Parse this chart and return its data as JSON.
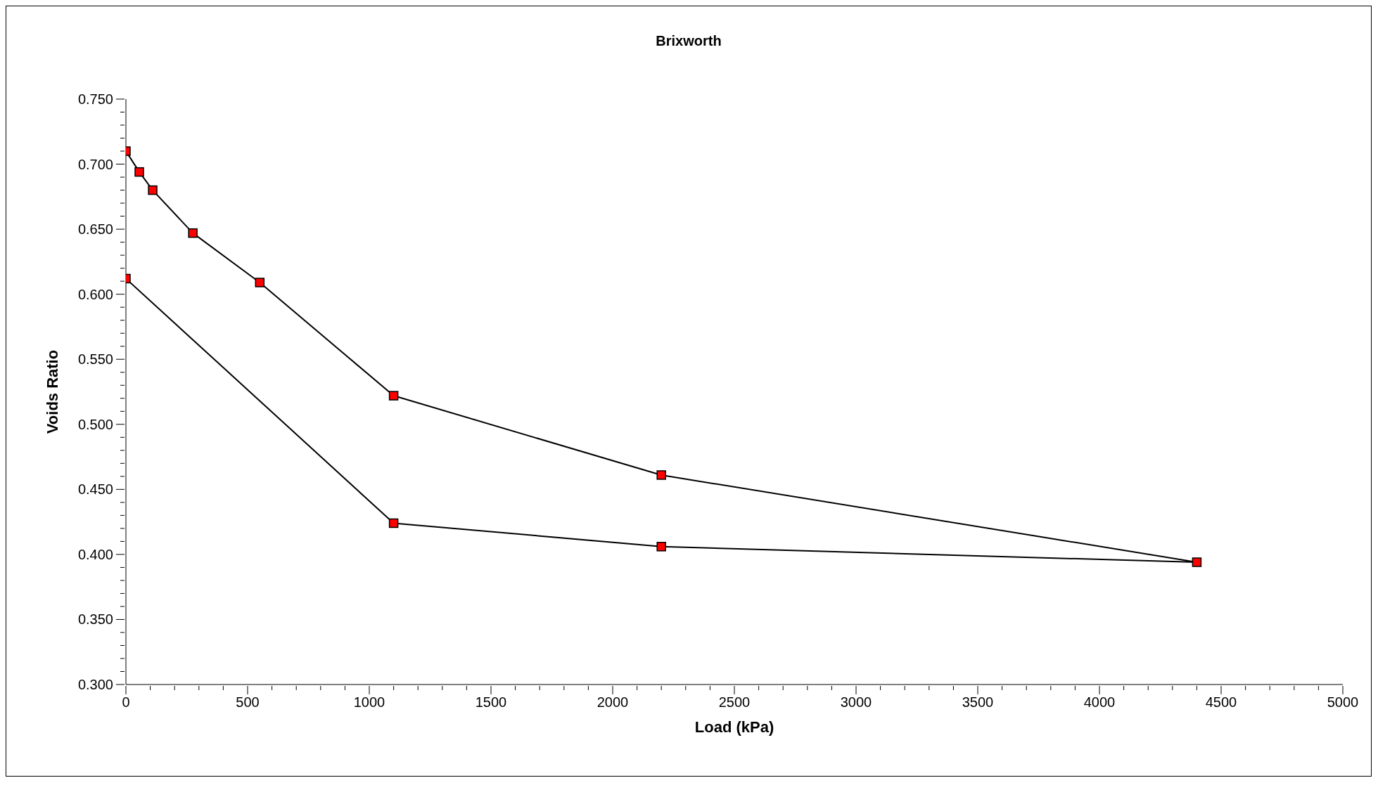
{
  "chart_data": {
    "type": "line",
    "title": "Brixworth",
    "xlabel": "Load (kPa)",
    "ylabel": "Voids Ratio",
    "series": [
      {
        "color": "#ff0000",
        "x": [
          0,
          55,
          110,
          275,
          550,
          1100,
          2200,
          4400,
          2200,
          1100,
          0
        ],
        "values": [
          0.71,
          0.694,
          0.68,
          0.647,
          0.609,
          0.522,
          0.461,
          0.394,
          0.406,
          0.424,
          0.612
        ]
      }
    ],
    "xlim": [
      0,
      5000
    ],
    "xticks": [
      0,
      {
        "value": 100,
        "label": null
      },
      {
        "value": 200,
        "label": null
      },
      {
        "value": 300,
        "label": null
      },
      {
        "value": 400,
        "label": null
      },
      500,
      {
        "value": 600,
        "label": null
      },
      {
        "value": 700,
        "label": null
      },
      {
        "value": 800,
        "label": null
      },
      {
        "value": 900,
        "label": null
      },
      1000,
      {
        "value": 1100,
        "label": null
      },
      {
        "value": 1200,
        "label": null
      },
      {
        "value": 1300,
        "label": null
      },
      {
        "value": 1400,
        "label": null
      },
      1500,
      {
        "value": 1600,
        "label": null
      },
      {
        "value": 1700,
        "label": null
      },
      {
        "value": 1800,
        "label": null
      },
      {
        "value": 1900,
        "label": null
      },
      2000,
      {
        "value": 2100,
        "label": null
      },
      {
        "value": 2200,
        "label": null
      },
      {
        "value": 2300,
        "label": null
      },
      {
        "value": 2400,
        "label": null
      },
      2500,
      {
        "value": 2600,
        "label": null
      },
      {
        "value": 2700,
        "label": null
      },
      {
        "value": 2800,
        "label": null
      },
      {
        "value": 2900,
        "label": null
      },
      3000,
      {
        "value": 3100,
        "label": null
      },
      {
        "value": 3200,
        "label": null
      },
      {
        "value": 3300,
        "label": null
      },
      {
        "value": 3400,
        "label": null
      },
      3500,
      {
        "value": 3600,
        "label": null
      },
      {
        "value": 3700,
        "label": null
      },
      {
        "value": 3800,
        "label": null
      },
      {
        "value": 3900,
        "label": null
      },
      4000,
      {
        "value": 4100,
        "label": null
      },
      {
        "value": 4200,
        "label": null
      },
      {
        "value": 4300,
        "label": null
      },
      {
        "value": 4400,
        "label": null
      },
      4500,
      {
        "value": 4600,
        "label": null
      },
      {
        "value": 4700,
        "label": null
      },
      {
        "value": 4800,
        "label": null
      },
      {
        "value": 4900,
        "label": null
      },
      5000
    ],
    "ylim": [
      0.3,
      0.75
    ],
    "yticks": [
      {
        "value": 0.3,
        "label": "0.300"
      },
      {
        "value": 0.31,
        "label": null
      },
      {
        "value": 0.32,
        "label": null
      },
      {
        "value": 0.33,
        "label": null
      },
      {
        "value": 0.34,
        "label": null
      },
      {
        "value": 0.35,
        "label": "0.350"
      },
      {
        "value": 0.36,
        "label": null
      },
      {
        "value": 0.37,
        "label": null
      },
      {
        "value": 0.38,
        "label": null
      },
      {
        "value": 0.39,
        "label": null
      },
      {
        "value": 0.4,
        "label": "0.400"
      },
      {
        "value": 0.41,
        "label": null
      },
      {
        "value": 0.42,
        "label": null
      },
      {
        "value": 0.43,
        "label": null
      },
      {
        "value": 0.44,
        "label": null
      },
      {
        "value": 0.45,
        "label": "0.450"
      },
      {
        "value": 0.46,
        "label": null
      },
      {
        "value": 0.47,
        "label": null
      },
      {
        "value": 0.48,
        "label": null
      },
      {
        "value": 0.49,
        "label": null
      },
      {
        "value": 0.5,
        "label": "0.500"
      },
      {
        "value": 0.51,
        "label": null
      },
      {
        "value": 0.52,
        "label": null
      },
      {
        "value": 0.53,
        "label": null
      },
      {
        "value": 0.54,
        "label": null
      },
      {
        "value": 0.55,
        "label": "0.550"
      },
      {
        "value": 0.56,
        "label": null
      },
      {
        "value": 0.57,
        "label": null
      },
      {
        "value": 0.58,
        "label": null
      },
      {
        "value": 0.59,
        "label": null
      },
      {
        "value": 0.6,
        "label": "0.600"
      },
      {
        "value": 0.61,
        "label": null
      },
      {
        "value": 0.62,
        "label": null
      },
      {
        "value": 0.63,
        "label": null
      },
      {
        "value": 0.64,
        "label": null
      },
      {
        "value": 0.65,
        "label": "0.650"
      },
      {
        "value": 0.66,
        "label": null
      },
      {
        "value": 0.67,
        "label": null
      },
      {
        "value": 0.68,
        "label": null
      },
      {
        "value": 0.69,
        "label": null
      },
      {
        "value": 0.7,
        "label": "0.700"
      },
      {
        "value": 0.71,
        "label": null
      },
      {
        "value": 0.72,
        "label": null
      },
      {
        "value": 0.73,
        "label": null
      },
      {
        "value": 0.74,
        "label": null
      },
      {
        "value": 0.75,
        "label": "0.750"
      }
    ],
    "grid": false,
    "marker": "square",
    "line_style": "solid"
  }
}
